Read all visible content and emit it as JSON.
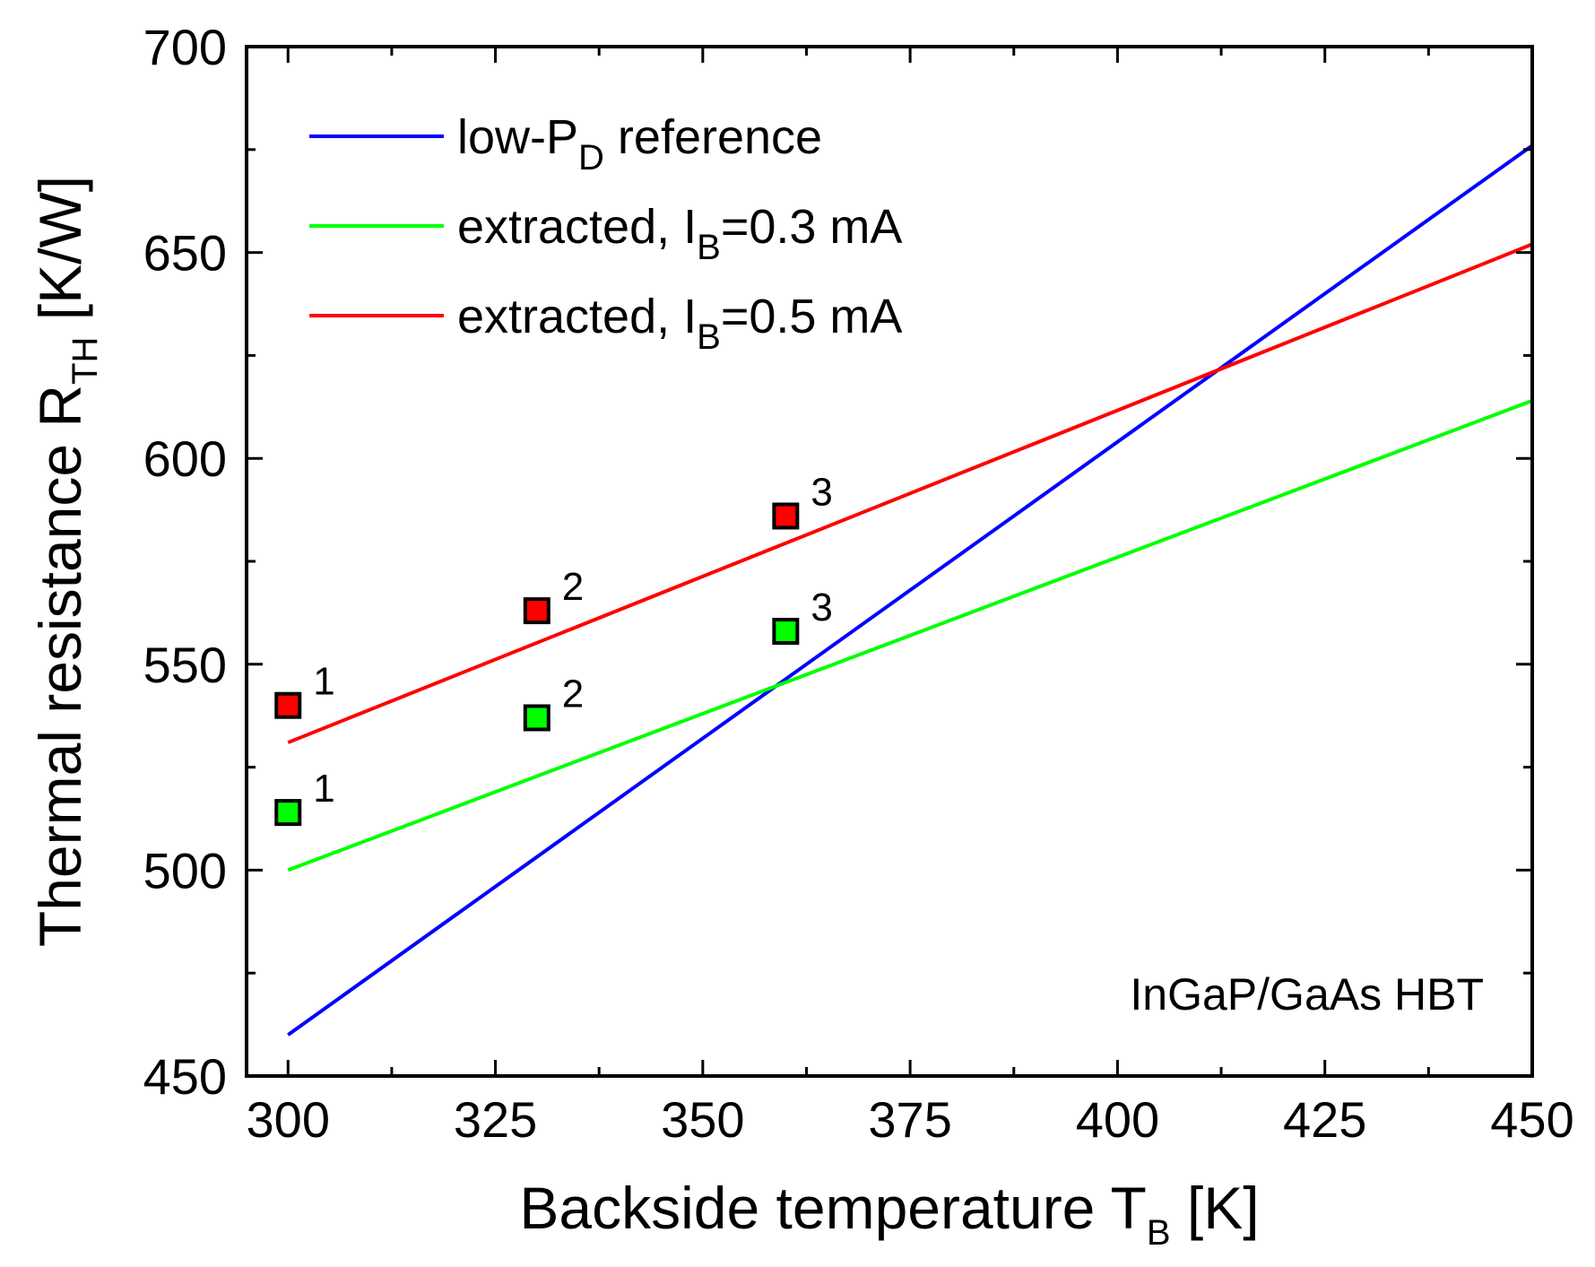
{
  "chart_data": {
    "type": "line",
    "xlabel": {
      "main": "Backside temperature T",
      "sub": "B",
      "unit": " [K]"
    },
    "ylabel": {
      "main": "Thermal resistance R",
      "sub": "TH",
      "unit": " [K/W]"
    },
    "xlim": [
      295,
      450
    ],
    "ylim": [
      450,
      700
    ],
    "xticks": [
      300,
      325,
      350,
      375,
      400,
      425,
      450
    ],
    "yticks": [
      450,
      500,
      550,
      600,
      650,
      700
    ],
    "grid": false,
    "legend_position": "top-left",
    "annotation": "InGaP/GaAs HBT",
    "series": [
      {
        "name": "low-P_D reference",
        "legend": {
          "pre": "low-P",
          "sub": "D",
          "post": " reference"
        },
        "color": "#0000ff",
        "x": [
          300,
          450
        ],
        "y": [
          460,
          676
        ]
      },
      {
        "name": "extracted, I_B=0.3 mA",
        "legend": {
          "pre": "extracted, I",
          "sub": "B",
          "post": "=0.3 mA"
        },
        "color": "#00ff00",
        "x": [
          300,
          450
        ],
        "y": [
          500,
          614
        ]
      },
      {
        "name": "extracted, I_B=0.5 mA",
        "legend": {
          "pre": "extracted, I",
          "sub": "B",
          "post": "=0.5 mA"
        },
        "color": "#ff0000",
        "x": [
          300,
          450
        ],
        "y": [
          531,
          652
        ]
      }
    ],
    "scatter": [
      {
        "name": "I_B=0.3 mA points",
        "color": "#00ff00",
        "points": [
          {
            "x": 300,
            "y": 514,
            "label": "1"
          },
          {
            "x": 330,
            "y": 537,
            "label": "2"
          },
          {
            "x": 360,
            "y": 558,
            "label": "3"
          }
        ]
      },
      {
        "name": "I_B=0.5 mA points",
        "color": "#ff0000",
        "points": [
          {
            "x": 300,
            "y": 540,
            "label": "1"
          },
          {
            "x": 330,
            "y": 563,
            "label": "2"
          },
          {
            "x": 360,
            "y": 586,
            "label": "3"
          }
        ]
      }
    ]
  }
}
